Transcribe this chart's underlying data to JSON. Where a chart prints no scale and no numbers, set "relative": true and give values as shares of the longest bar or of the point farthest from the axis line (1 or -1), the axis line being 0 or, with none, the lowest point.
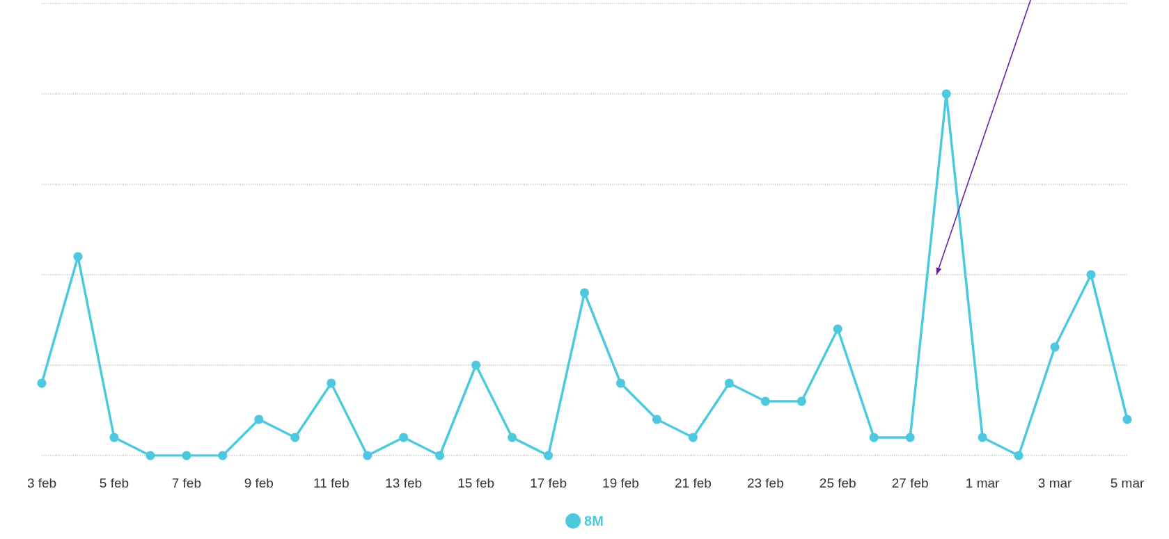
{
  "chart_data": {
    "type": "line",
    "relative": true,
    "categories": [
      "3 feb",
      null,
      "5 feb",
      null,
      "7 feb",
      null,
      "9 feb",
      null,
      "11 feb",
      null,
      "13 feb",
      null,
      "15 feb",
      null,
      "17 feb",
      null,
      "19 feb",
      null,
      "21 feb",
      null,
      "23 feb",
      null,
      "25 feb",
      null,
      "27 feb",
      null,
      "1 mar",
      null,
      "3 mar",
      null,
      "5 mar"
    ],
    "series": [
      {
        "name": "8M",
        "color": "#4dc9df",
        "values": [
          0.2,
          0.55,
          0.05,
          0,
          0,
          0,
          0.1,
          0.05,
          0.2,
          0,
          0.05,
          0,
          0.25,
          0.05,
          0,
          0.45,
          0.2,
          0.1,
          0.05,
          0.2,
          0.15,
          0.15,
          0.35,
          0.05,
          0.05,
          1,
          0.05,
          0,
          0.3,
          0.5,
          0.1
        ]
      }
    ],
    "grid": "y",
    "legend": "bottom",
    "marker": "circle",
    "line_style": "solid"
  }
}
